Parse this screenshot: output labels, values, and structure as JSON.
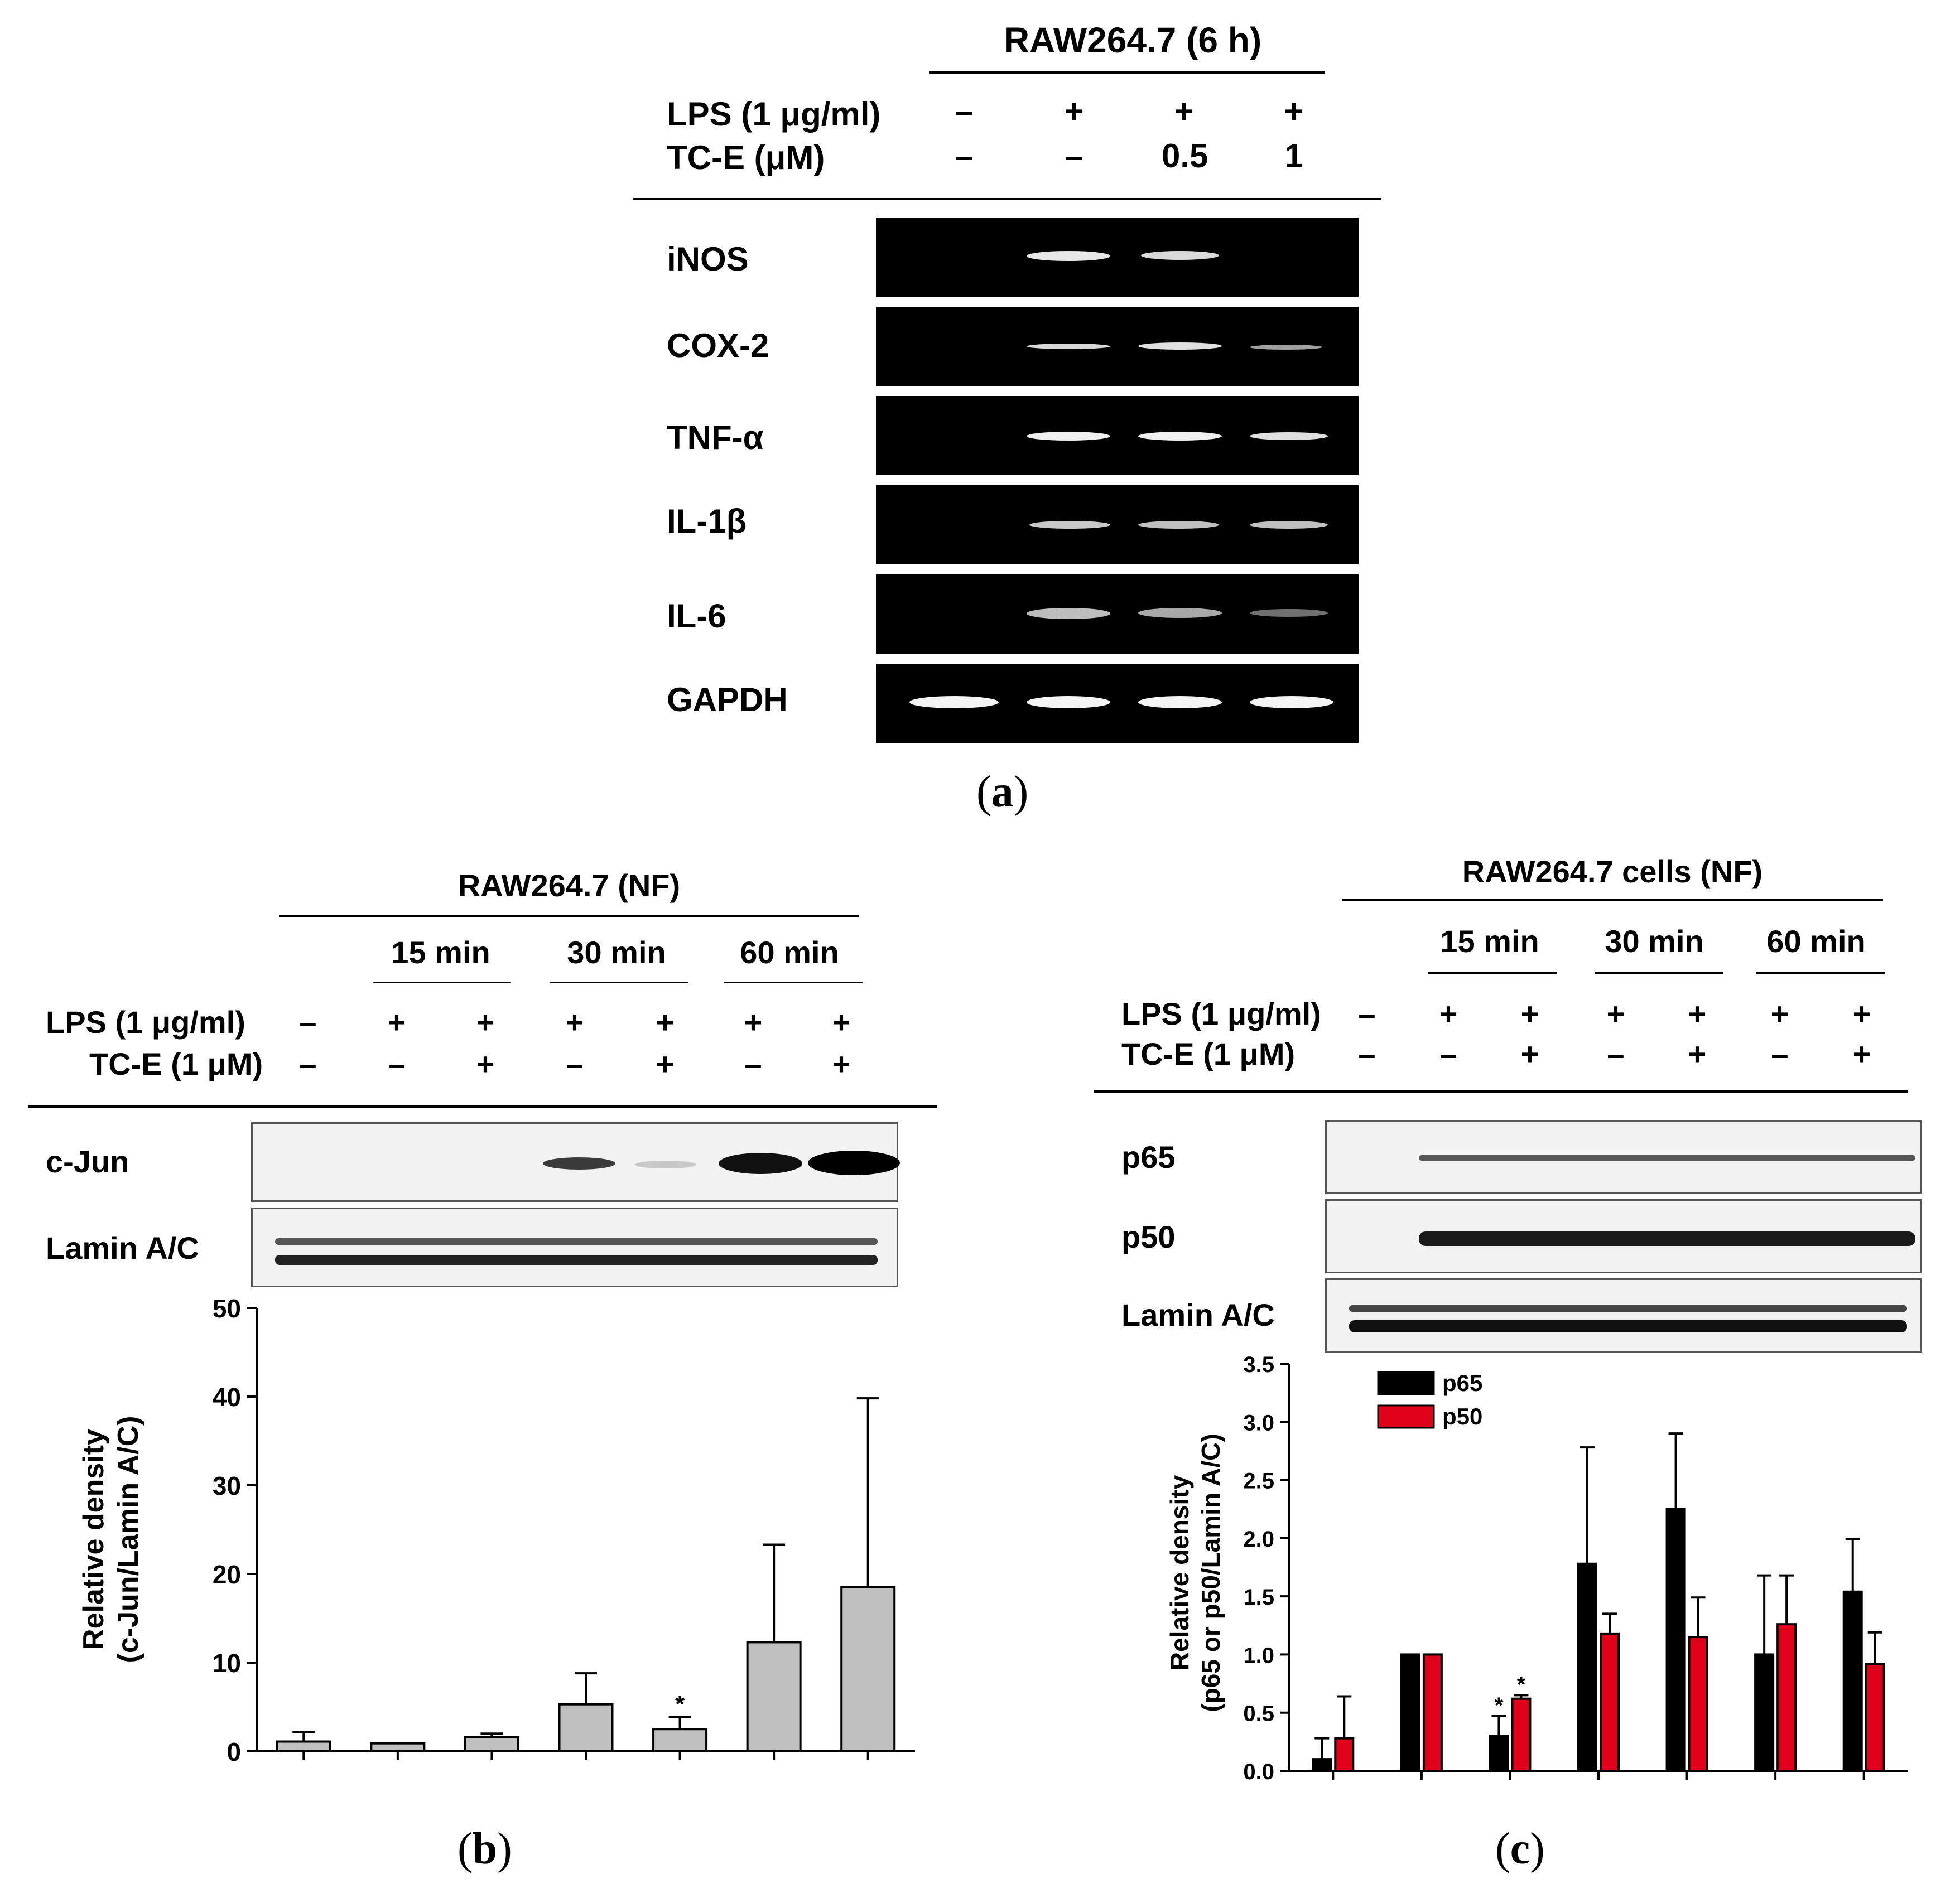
{
  "panel_a": {
    "header": "RAW264.7 (6 h)",
    "lps_label": "LPS (1 μg/ml)",
    "tce_label": "TC-E (μM)",
    "lps": [
      "–",
      "+",
      "+",
      "+"
    ],
    "tce": [
      "–",
      "–",
      "0.5",
      "1"
    ],
    "genes": [
      "iNOS",
      "COX-2",
      "TNF-α",
      "IL-1β",
      "IL-6",
      "GAPDH"
    ],
    "caption_open": "(",
    "caption_letter": "a",
    "caption_close": ")"
  },
  "panel_b": {
    "header": "RAW264.7 (NF)",
    "times": [
      "15 min",
      "30 min",
      "60 min"
    ],
    "lps_label": "LPS (1 μg/ml)",
    "tce_label": "TC-E (1 μM)",
    "lps": [
      "–",
      "+",
      "+",
      "+",
      "+",
      "+",
      "+"
    ],
    "tce": [
      "–",
      "–",
      "+",
      "–",
      "+",
      "–",
      "+"
    ],
    "blots": [
      "c-Jun",
      "Lamin A/C"
    ],
    "caption_open": "(",
    "caption_letter": "b",
    "caption_close": ")"
  },
  "panel_c": {
    "header": "RAW264.7 cells (NF)",
    "times": [
      "15 min",
      "30 min",
      "60 min"
    ],
    "lps_label": "LPS (1 μg/ml)",
    "tce_label": "TC-E (1 μM)",
    "lps": [
      "–",
      "+",
      "+",
      "+",
      "+",
      "+",
      "+"
    ],
    "tce": [
      "–",
      "–",
      "+",
      "–",
      "+",
      "–",
      "+"
    ],
    "blots": [
      "p65",
      "p50",
      "Lamin A/C"
    ],
    "caption_open": "(",
    "caption_letter": "c",
    "caption_close": ")"
  },
  "chart_data": [
    {
      "type": "bar",
      "ylabel_line1": "Relative density",
      "ylabel_line2": "(c-Jun/Lamin A/C)",
      "ylim": [
        0,
        50
      ],
      "yticks": [
        "0",
        "10",
        "20",
        "30",
        "40",
        "50"
      ],
      "series": [
        {
          "color": "#c0c0c0",
          "values": [
            1.1,
            0.9,
            1.6,
            5.3,
            2.5,
            12.3,
            18.5
          ],
          "errors": [
            1.1,
            0,
            0.4,
            3.5,
            1.4,
            11.0,
            21.3
          ]
        }
      ],
      "annotations": [
        {
          "bar": 4,
          "text": "*"
        }
      ]
    },
    {
      "type": "bar",
      "ylabel_line1": "Relative density",
      "ylabel_line2": "(p65 or p50/Lamin A/C)",
      "ylim": [
        0,
        3.5
      ],
      "yticks": [
        "0.0",
        "0.5",
        "1.0",
        "1.5",
        "2.0",
        "2.5",
        "3.0",
        "3.5"
      ],
      "legend": "top-left",
      "series": [
        {
          "name": "p65",
          "color": "#000000",
          "values": [
            0.1,
            1.0,
            0.3,
            1.78,
            2.25,
            1.0,
            1.54
          ],
          "errors": [
            0.18,
            0,
            0.17,
            1.0,
            0.65,
            0.68,
            0.45
          ]
        },
        {
          "name": "p50",
          "color": "#e0001a",
          "values": [
            0.28,
            1.0,
            0.62,
            1.18,
            1.15,
            1.26,
            0.92
          ],
          "errors": [
            0.36,
            0,
            0.03,
            0.17,
            0.34,
            0.42,
            0.27
          ]
        }
      ],
      "annotations": [
        {
          "group": 2,
          "series": 0,
          "text": "*"
        },
        {
          "group": 2,
          "series": 1,
          "text": "*"
        }
      ]
    }
  ]
}
